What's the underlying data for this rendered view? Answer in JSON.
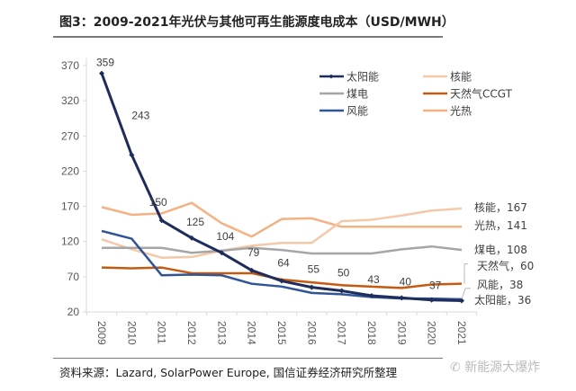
{
  "header": {
    "title": "图3：2009-2021年光伏与其他可再生能源度电成本（USD/MWH）"
  },
  "footer": {
    "source": "资料来源：Lazard, SolarPower Europe, 国信证券经济研究所整理",
    "watermark": "新能源大爆炸"
  },
  "chart_data": {
    "type": "line",
    "title": "2009-2021年光伏与其他可再生能源度电成本（USD/MWH）",
    "xlabel": "",
    "ylabel": "USD/MWH",
    "x": [
      "2009",
      "2010",
      "2011",
      "2012",
      "2013",
      "2014",
      "2015",
      "2016",
      "2017",
      "2018",
      "2019",
      "2020",
      "2021"
    ],
    "ylim": [
      20,
      370
    ],
    "yticks": [
      20,
      70,
      120,
      170,
      220,
      270,
      320,
      370
    ],
    "grid": false,
    "legend_position": "top-right",
    "series": [
      {
        "name": "太阳能",
        "color": "#1f2d5c",
        "markers": true,
        "values": [
          359,
          243,
          150,
          125,
          104,
          79,
          64,
          55,
          50,
          43,
          40,
          37,
          36
        ],
        "data_labels": [
          "359",
          "243",
          "150",
          "125",
          "104",
          "79",
          "64",
          "55",
          "50",
          "43",
          "40",
          "37",
          ""
        ],
        "end_label": "太阳能，36"
      },
      {
        "name": "核能",
        "color": "#f4c9a8",
        "markers": false,
        "values": [
          123,
          109,
          97,
          98,
          107,
          114,
          118,
          118,
          149,
          151,
          157,
          164,
          167
        ],
        "end_label": "核能，167"
      },
      {
        "name": "煤电",
        "color": "#a6a6a6",
        "markers": false,
        "values": [
          111,
          111,
          111,
          104,
          107,
          111,
          108,
          103,
          103,
          103,
          109,
          113,
          108
        ],
        "end_label": "煤电，108"
      },
      {
        "name": "天然气CCGT",
        "color": "#c55a11",
        "markers": false,
        "values": [
          83,
          82,
          83,
          75,
          75,
          75,
          66,
          62,
          58,
          56,
          54,
          59,
          60
        ],
        "end_label": "天然气，60"
      },
      {
        "name": "风能",
        "color": "#2f5597",
        "markers": false,
        "values": [
          135,
          124,
          72,
          73,
          72,
          60,
          56,
          47,
          45,
          41,
          39,
          39,
          38
        ],
        "end_label": "风能，38"
      },
      {
        "name": "光热",
        "color": "#f4b183",
        "markers": false,
        "values": [
          169,
          158,
          160,
          175,
          146,
          127,
          152,
          153,
          141,
          141,
          141,
          141,
          141
        ],
        "end_label": "光热，141"
      }
    ]
  }
}
